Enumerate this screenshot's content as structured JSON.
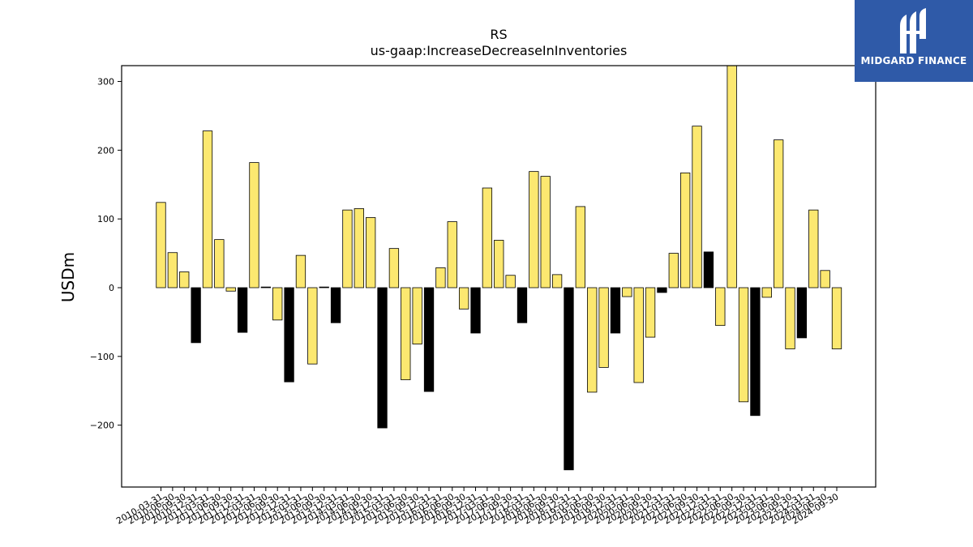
{
  "brand": {
    "name": "MIDGARD FINANCE",
    "icon": "midgard-logo-icon",
    "color": "#2f5aa8"
  },
  "chart_data": {
    "type": "bar",
    "title": "RS",
    "subtitle": "us-gaap:IncreaseDecreaseInInventories",
    "xlabel": "",
    "ylabel": "USDm",
    "ylim": [
      -290,
      323
    ],
    "yticks": [
      -200,
      -100,
      0,
      100,
      200,
      300
    ],
    "grid": false,
    "colors": {
      "yellow": "#fce870",
      "black": "#000000"
    },
    "categories": [
      "2010-03-31",
      "2010-06-30",
      "2010-09-30",
      "2010-12-31",
      "2011-03-31",
      "2011-06-30",
      "2011-09-30",
      "2011-12-31",
      "2012-03-31",
      "2012-06-30",
      "2012-09-30",
      "2012-12-31",
      "2013-03-31",
      "2013-06-30",
      "2013-09-30",
      "2013-12-31",
      "2014-03-31",
      "2014-06-30",
      "2014-09-30",
      "2014-12-31",
      "2015-03-31",
      "2015-06-30",
      "2015-09-30",
      "2015-12-31",
      "2016-03-31",
      "2016-06-30",
      "2016-09-30",
      "2016-12-31",
      "2017-03-31",
      "2017-06-30",
      "2017-09-30",
      "2017-12-31",
      "2018-03-31",
      "2018-06-30",
      "2018-09-30",
      "2018-12-31",
      "2019-03-31",
      "2019-06-30",
      "2019-09-30",
      "2019-12-31",
      "2020-03-31",
      "2020-06-30",
      "2020-09-30",
      "2020-12-31",
      "2021-03-31",
      "2021-06-30",
      "2021-09-30",
      "2021-12-31",
      "2022-03-31",
      "2022-06-30",
      "2022-09-30",
      "2022-12-31",
      "2023-03-31",
      "2023-06-30",
      "2023-09-30",
      "2023-12-31",
      "2024-03-31",
      "2024-06-30",
      "2024-09-30"
    ],
    "values": [
      124,
      51,
      23,
      -80,
      228,
      70,
      -5,
      -65,
      182,
      1,
      -47,
      -137,
      47,
      -111,
      1,
      -51,
      113,
      115,
      102,
      -204,
      57,
      -134,
      -82,
      -151,
      29,
      96,
      -31,
      -66,
      145,
      69,
      18,
      -51,
      169,
      162,
      19,
      -265,
      118,
      -152,
      -116,
      -66,
      -13,
      -138,
      -72,
      -7,
      50,
      167,
      235,
      52,
      -55,
      323,
      -166,
      -186,
      -14,
      215,
      -89,
      -73,
      113,
      25,
      -89
    ],
    "bar_colors": [
      "yellow",
      "yellow",
      "yellow",
      "black",
      "yellow",
      "yellow",
      "yellow",
      "black",
      "yellow",
      "black",
      "yellow",
      "black",
      "yellow",
      "yellow",
      "black",
      "black",
      "yellow",
      "yellow",
      "yellow",
      "black",
      "yellow",
      "yellow",
      "yellow",
      "black",
      "yellow",
      "yellow",
      "yellow",
      "black",
      "yellow",
      "yellow",
      "yellow",
      "black",
      "yellow",
      "yellow",
      "yellow",
      "black",
      "yellow",
      "yellow",
      "yellow",
      "black",
      "yellow",
      "yellow",
      "yellow",
      "black",
      "yellow",
      "yellow",
      "yellow",
      "black",
      "yellow",
      "yellow",
      "yellow",
      "black",
      "yellow",
      "yellow",
      "yellow",
      "black",
      "yellow",
      "yellow",
      "yellow"
    ]
  }
}
